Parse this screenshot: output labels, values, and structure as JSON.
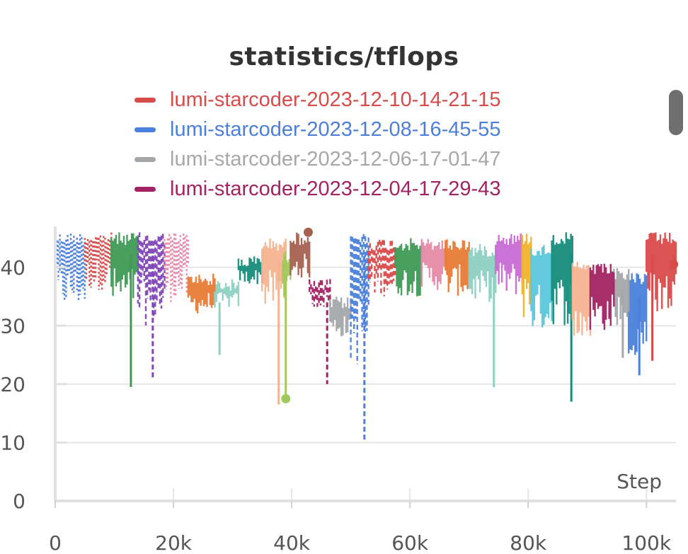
{
  "chart_data": {
    "type": "line",
    "title": "statistics/tflops",
    "xlabel": "Step",
    "ylabel": "",
    "xlim": [
      0,
      105000
    ],
    "ylim": [
      0,
      47
    ],
    "xticks": [
      0,
      20000,
      40000,
      60000,
      80000,
      100000
    ],
    "xtick_labels": [
      "0",
      "20k",
      "40k",
      "60k",
      "80k",
      "100k"
    ],
    "yticks": [
      0,
      10,
      20,
      30,
      40
    ],
    "ytick_labels": [
      "0",
      "10",
      "20",
      "30",
      "40"
    ],
    "grid": true,
    "legend": "top",
    "series": [
      {
        "name": "lumi-starcoder-2023-12-10-14-21-15",
        "color": "#d94a4a",
        "style": "solid",
        "x_range": [
          100000,
          105000
        ],
        "low": 32,
        "high": 46,
        "dips": [
          [
            101000,
            24
          ],
          [
            104500,
            40.5
          ]
        ]
      },
      {
        "name": "lumi-starcoder-2023-12-08-16-45-55",
        "color": "#4a80db",
        "style": "solid",
        "x_range": [
          97000,
          100000
        ],
        "low": 25,
        "high": 39,
        "dips": [
          [
            98800,
            21.5
          ]
        ]
      },
      {
        "name": "lumi-starcoder-2023-12-06-17-01-47",
        "color": "#a4a8ab",
        "style": "solid",
        "x_range": [
          94500,
          97000
        ],
        "low": 30,
        "high": 40,
        "dips": [
          [
            96000,
            24.5
          ]
        ]
      },
      {
        "name": "lumi-starcoder-2023-12-04-17-29-43",
        "color": "#a32263",
        "style": "solid",
        "x_range": [
          90500,
          94500
        ],
        "low": 29,
        "high": 41,
        "dips": []
      }
    ],
    "other_segments": [
      {
        "color": "#4a80db",
        "style": "dotted",
        "x_range": [
          0,
          5000
        ],
        "low": 33,
        "high": 46,
        "dips": []
      },
      {
        "color": "#d94a4a",
        "style": "dotted",
        "x_range": [
          5000,
          9500
        ],
        "low": 36,
        "high": 46,
        "dips": []
      },
      {
        "color": "#3e9a55",
        "style": "solid",
        "x_range": [
          9500,
          14000
        ],
        "low": 33,
        "high": 46,
        "dips": [
          [
            12800,
            19.5
          ]
        ]
      },
      {
        "color": "#8046b8",
        "style": "dashed",
        "x_range": [
          14000,
          18500
        ],
        "low": 30,
        "high": 46,
        "dips": [
          [
            16500,
            21
          ]
        ]
      },
      {
        "color": "#e68aa6",
        "style": "dotted",
        "x_range": [
          18500,
          22500
        ],
        "low": 34,
        "high": 46,
        "dips": []
      },
      {
        "color": "#e87a35",
        "style": "solid",
        "x_range": [
          22500,
          27000
        ],
        "low": 32,
        "high": 39,
        "dips": []
      },
      {
        "color": "#8fd0c3",
        "style": "solid",
        "x_range": [
          27000,
          31000
        ],
        "low": 33,
        "high": 38,
        "dips": [
          [
            27800,
            25
          ]
        ]
      },
      {
        "color": "#168c7c",
        "style": "solid",
        "x_range": [
          31000,
          35000
        ],
        "low": 37,
        "high": 42,
        "dips": []
      },
      {
        "color": "#f4b38f",
        "style": "solid",
        "x_range": [
          35000,
          39000
        ],
        "low": 33,
        "high": 45,
        "dips": [
          [
            37800,
            16.5
          ]
        ]
      },
      {
        "color": "#a0c85a",
        "style": "solid",
        "x_range": [
          38500,
          39800
        ],
        "low": 35,
        "high": 43,
        "dips": [
          [
            39000,
            17.5
          ]
        ]
      },
      {
        "color": "#a66150",
        "style": "solid",
        "x_range": [
          39800,
          43000
        ],
        "low": 38,
        "high": 46,
        "dips": []
      },
      {
        "color": "#a32263",
        "style": "dashed",
        "x_range": [
          43000,
          46500
        ],
        "low": 33,
        "high": 38,
        "dips": [
          [
            46000,
            20
          ]
        ]
      },
      {
        "color": "#a4a8ab",
        "style": "solid",
        "x_range": [
          46500,
          50000
        ],
        "low": 28,
        "high": 35,
        "dips": []
      },
      {
        "color": "#4a80db",
        "style": "dashed",
        "x_range": [
          50000,
          53000
        ],
        "low": 23,
        "high": 46,
        "dips": [
          [
            52300,
            10.5
          ]
        ]
      },
      {
        "color": "#d94a4a",
        "style": "dashed",
        "x_range": [
          53000,
          57500
        ],
        "low": 35,
        "high": 45,
        "dips": []
      },
      {
        "color": "#3e9a55",
        "style": "solid",
        "x_range": [
          57500,
          62000
        ],
        "low": 35,
        "high": 45,
        "dips": []
      },
      {
        "color": "#e68aa6",
        "style": "solid",
        "x_range": [
          62000,
          66000
        ],
        "low": 36,
        "high": 45,
        "dips": []
      },
      {
        "color": "#e87a35",
        "style": "solid",
        "x_range": [
          66000,
          70000
        ],
        "low": 35,
        "high": 45,
        "dips": []
      },
      {
        "color": "#8fd0c3",
        "style": "solid",
        "x_range": [
          70000,
          74500
        ],
        "low": 34,
        "high": 44,
        "dips": [
          [
            74200,
            19.5
          ]
        ]
      },
      {
        "color": "#c86ad4",
        "style": "solid",
        "x_range": [
          74500,
          79000
        ],
        "low": 35,
        "high": 46,
        "dips": []
      },
      {
        "color": "#f0b429",
        "style": "solid",
        "x_range": [
          79000,
          80500
        ],
        "low": 31,
        "high": 46,
        "dips": []
      },
      {
        "color": "#5bc6dc",
        "style": "solid",
        "x_range": [
          80500,
          84000
        ],
        "low": 29,
        "high": 44,
        "dips": []
      },
      {
        "color": "#168c7c",
        "style": "solid",
        "x_range": [
          84000,
          87500
        ],
        "low": 30,
        "high": 46,
        "dips": [
          [
            87300,
            17
          ]
        ]
      },
      {
        "color": "#f4b38f",
        "style": "solid",
        "x_range": [
          87500,
          90500
        ],
        "low": 27,
        "high": 41,
        "dips": []
      }
    ]
  }
}
